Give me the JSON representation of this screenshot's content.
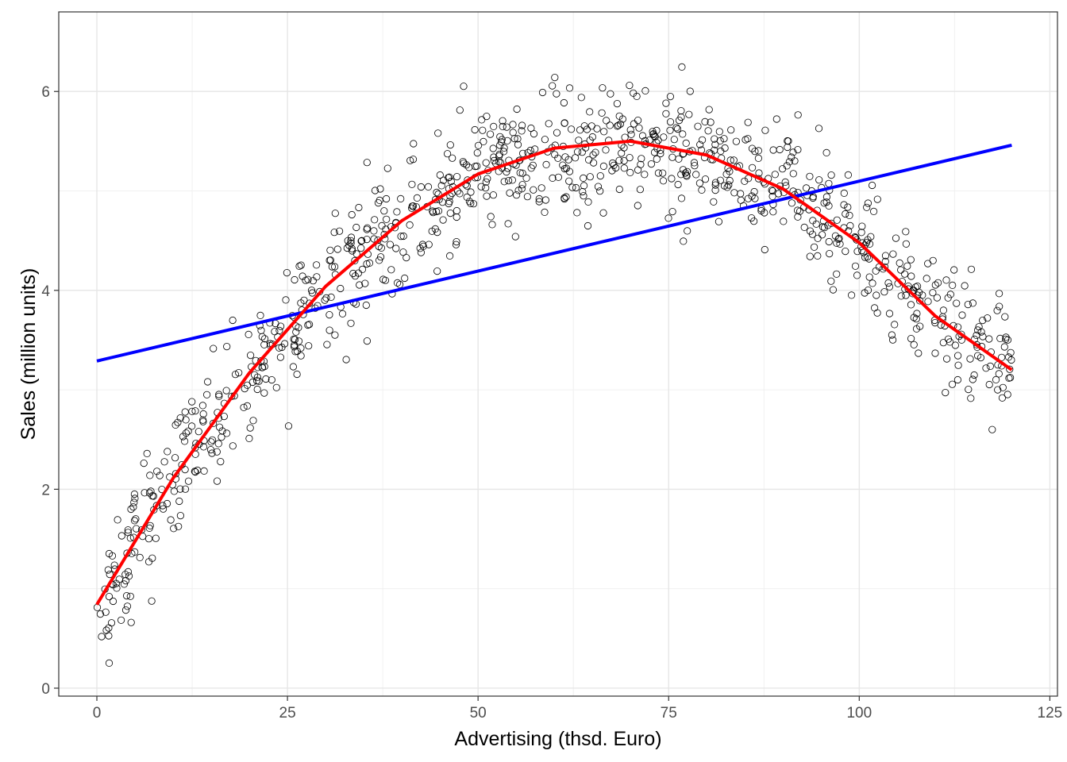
{
  "chart_data": {
    "type": "scatter",
    "xlabel": "Advertising (thsd. Euro)",
    "ylabel": "Sales (million units)",
    "xlim": [
      -5,
      126
    ],
    "ylim": [
      -0.08,
      6.8
    ],
    "x_ticks": [
      0,
      25,
      50,
      75,
      100,
      125
    ],
    "x_tick_labels": [
      "0",
      "25",
      "50",
      "75",
      "100",
      "125"
    ],
    "y_ticks": [
      0,
      2,
      4,
      6
    ],
    "y_tick_labels": [
      "0",
      "2",
      "4",
      "6"
    ],
    "grid": true,
    "legend": "none",
    "points": {
      "count": 1000,
      "x_range": [
        0,
        120
      ],
      "marker": "open-circle",
      "trend": "quadratic",
      "note": "1000 observations scattered around the quadratic fit, residual spread approx. ±0.8"
    },
    "series": [
      {
        "type": "line",
        "fit": "linear",
        "color": "#0000ff",
        "x": [
          0,
          120
        ],
        "y": [
          3.29,
          5.46
        ]
      },
      {
        "type": "line",
        "fit": "quadratic",
        "color": "#ff0000",
        "x": [
          0,
          10,
          20,
          30,
          40,
          50,
          60,
          70,
          80,
          90,
          100,
          110,
          120
        ],
        "y": [
          0.84,
          2.11,
          3.17,
          4.04,
          4.7,
          5.17,
          5.43,
          5.5,
          5.36,
          5.02,
          4.48,
          3.74,
          3.2
        ]
      }
    ]
  }
}
